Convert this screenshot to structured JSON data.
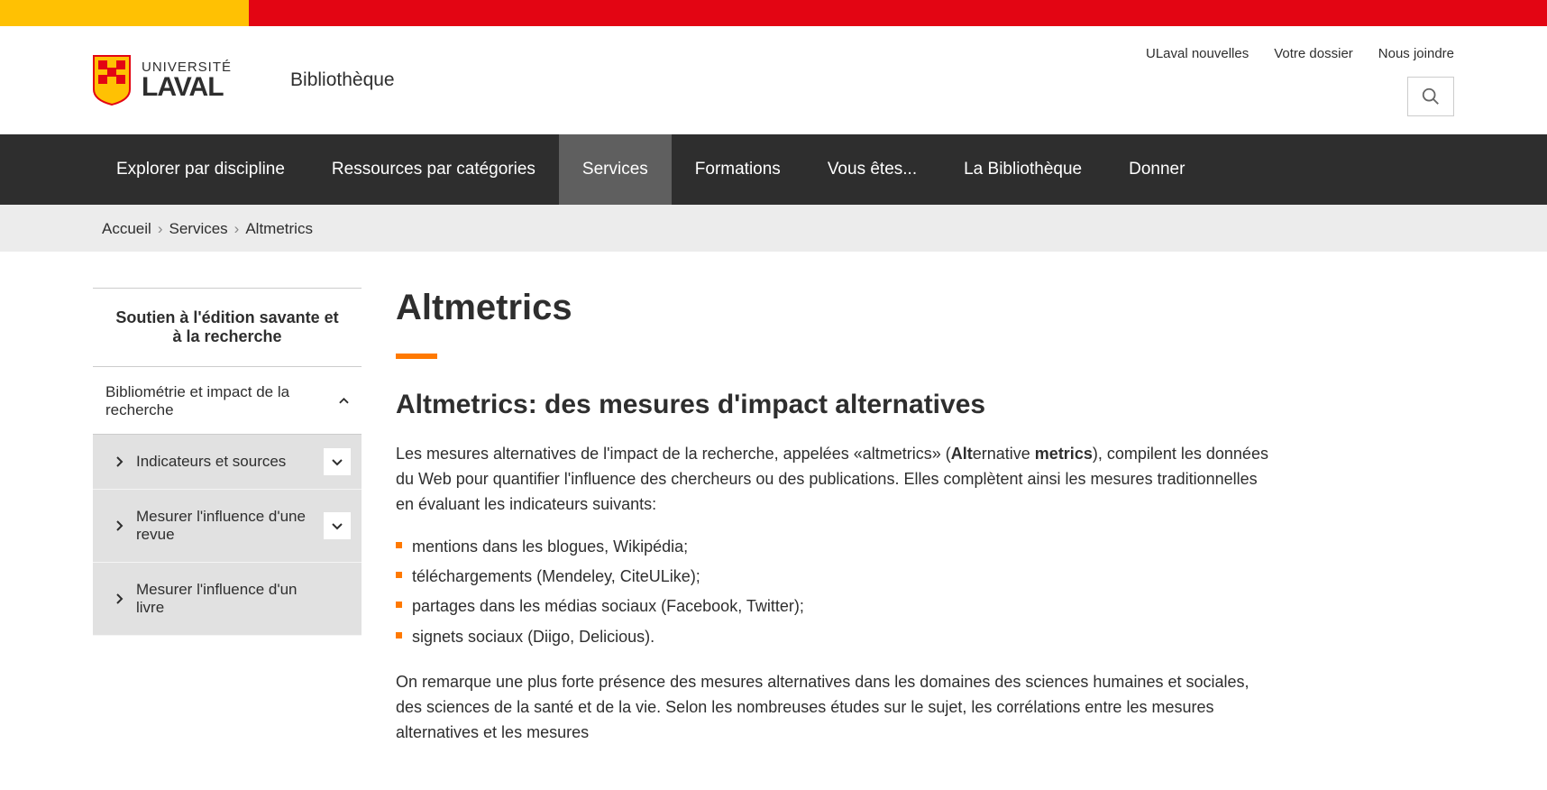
{
  "colors": {
    "gold": "#ffc103",
    "red": "#e30513",
    "navBg": "#2e2e2e",
    "navActive": "#5f5f5f",
    "accent": "#ff7900",
    "bcBg": "#ececec",
    "subBg": "#e1e1e1"
  },
  "logo": {
    "line1": "UNIVERSITÉ",
    "line2": "LAVAL"
  },
  "siteName": "Bibliothèque",
  "utilNav": [
    {
      "label": "ULaval nouvelles"
    },
    {
      "label": "Votre dossier"
    },
    {
      "label": "Nous joindre"
    }
  ],
  "mainNav": [
    {
      "label": "Explorer par discipline",
      "active": false
    },
    {
      "label": "Ressources par catégories",
      "active": false
    },
    {
      "label": "Services",
      "active": true
    },
    {
      "label": "Formations",
      "active": false
    },
    {
      "label": "Vous êtes...",
      "active": false
    },
    {
      "label": "La Bibliothèque",
      "active": false
    },
    {
      "label": "Donner",
      "active": false
    }
  ],
  "breadcrumb": [
    {
      "label": "Accueil",
      "link": true
    },
    {
      "label": "Services",
      "link": true
    },
    {
      "label": "Altmetrics",
      "link": false
    }
  ],
  "sidebar": {
    "header": "Soutien à l'édition savante et à la recherche",
    "section": {
      "title": "Bibliométrie et impact de la recherche",
      "expanded": true
    },
    "subitems": [
      {
        "label": "Indicateurs et sources",
        "expandable": true
      },
      {
        "label": "Mesurer l'influence d'une revue",
        "expandable": true
      },
      {
        "label": "Mesurer l'influence d'un livre",
        "expandable": false
      }
    ]
  },
  "content": {
    "h1": "Altmetrics",
    "h2": "Altmetrics: des mesures d'impact alternatives",
    "p1_a": "Les mesures alternatives de l'impact de la recherche, appelées «altmetrics» (",
    "p1_b": "Alt",
    "p1_c": "ernative ",
    "p1_d": "metrics",
    "p1_e": "), compilent les données du Web pour quantifier l'influence des chercheurs ou des publications. Elles complètent ainsi les mesures traditionnelles en évaluant les indicateurs suivants:",
    "bullets": [
      "mentions dans les blogues, Wikipédia;",
      "téléchargements (Mendeley, CiteULike);",
      "partages dans les médias sociaux (Facebook, Twitter);",
      "signets sociaux (Diigo, Delicious)."
    ],
    "p2": "On remarque une plus forte présence des mesures alternatives dans les domaines des sciences humaines et sociales, des sciences de la santé et de la vie. Selon les nombreuses études sur le sujet, les corrélations entre les mesures alternatives et les mesures"
  }
}
